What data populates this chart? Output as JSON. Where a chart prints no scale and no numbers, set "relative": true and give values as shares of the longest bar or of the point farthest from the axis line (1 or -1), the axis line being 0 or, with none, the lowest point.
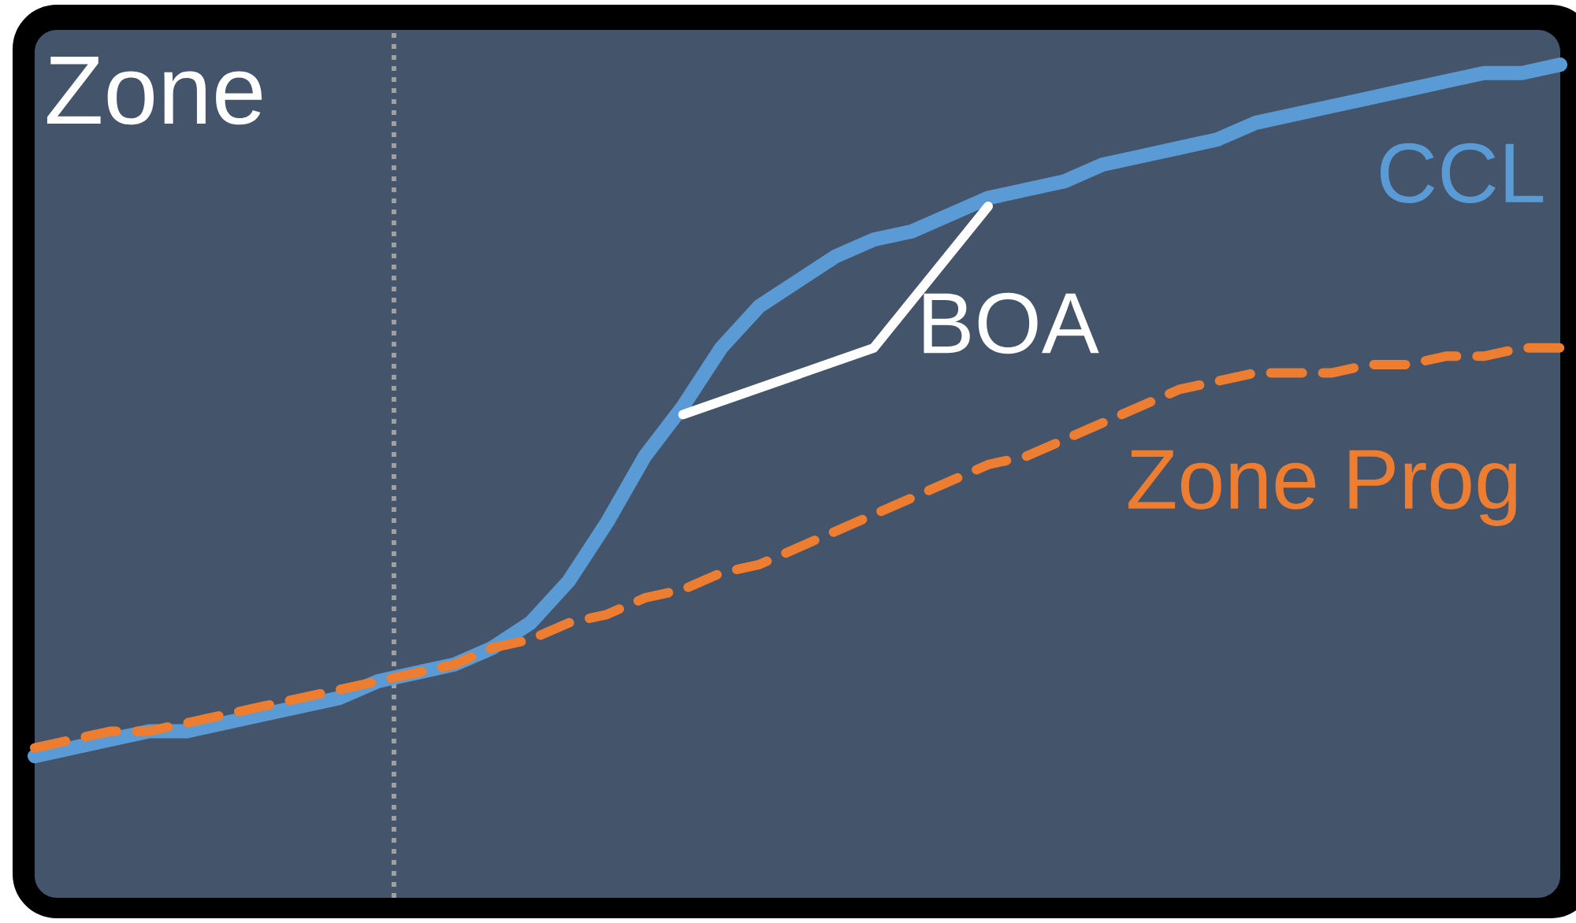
{
  "chart_data": {
    "type": "line",
    "title": "Zone",
    "relative": true,
    "marker": "none",
    "categories": [
      null,
      null,
      null,
      null,
      null,
      null,
      null,
      null,
      null,
      null,
      null,
      null,
      null,
      null,
      null,
      null,
      null,
      null,
      null,
      null,
      null,
      null,
      null,
      null,
      null,
      null,
      null,
      null,
      null,
      null,
      null,
      null,
      null,
      null,
      null,
      null,
      null,
      null,
      null,
      null,
      null
    ],
    "series": [
      {
        "name": "CCL",
        "color": "#5b9bd5",
        "line_style": "solid",
        "values": [
          0.17,
          0.18,
          0.19,
          0.2,
          0.2,
          0.21,
          0.22,
          0.23,
          0.24,
          0.26,
          0.27,
          0.28,
          0.3,
          0.33,
          0.38,
          0.45,
          0.53,
          0.59,
          0.66,
          0.71,
          0.74,
          0.77,
          0.79,
          0.8,
          0.82,
          0.84,
          0.85,
          0.86,
          0.88,
          0.89,
          0.9,
          0.91,
          0.93,
          0.94,
          0.95,
          0.96,
          0.97,
          0.98,
          0.99,
          0.99,
          1
        ]
      },
      {
        "name": "Zone Prog",
        "color": "#ed7d31",
        "line_style": "dashed",
        "values": [
          0.18,
          0.19,
          0.2,
          0.2,
          0.21,
          0.22,
          0.23,
          0.24,
          0.25,
          0.26,
          0.27,
          0.28,
          0.3,
          0.31,
          0.33,
          0.34,
          0.36,
          0.37,
          0.39,
          0.4,
          0.42,
          0.44,
          0.46,
          0.48,
          0.5,
          0.52,
          0.53,
          0.55,
          0.57,
          0.59,
          0.61,
          0.62,
          0.63,
          0.63,
          0.63,
          0.64,
          0.64,
          0.65,
          0.65,
          0.66,
          0.66
        ]
      },
      {
        "name": "BOA",
        "color": "#ffffff",
        "line_style": "solid",
        "values": [
          null,
          null,
          null,
          null,
          null,
          null,
          null,
          null,
          null,
          null,
          null,
          null,
          null,
          null,
          null,
          null,
          null,
          0.58,
          null,
          null,
          null,
          null,
          0.66,
          null,
          null,
          0.83,
          null,
          null,
          null,
          null,
          null,
          null,
          null,
          null,
          null,
          null,
          null,
          null,
          null,
          null,
          null
        ]
      }
    ]
  }
}
